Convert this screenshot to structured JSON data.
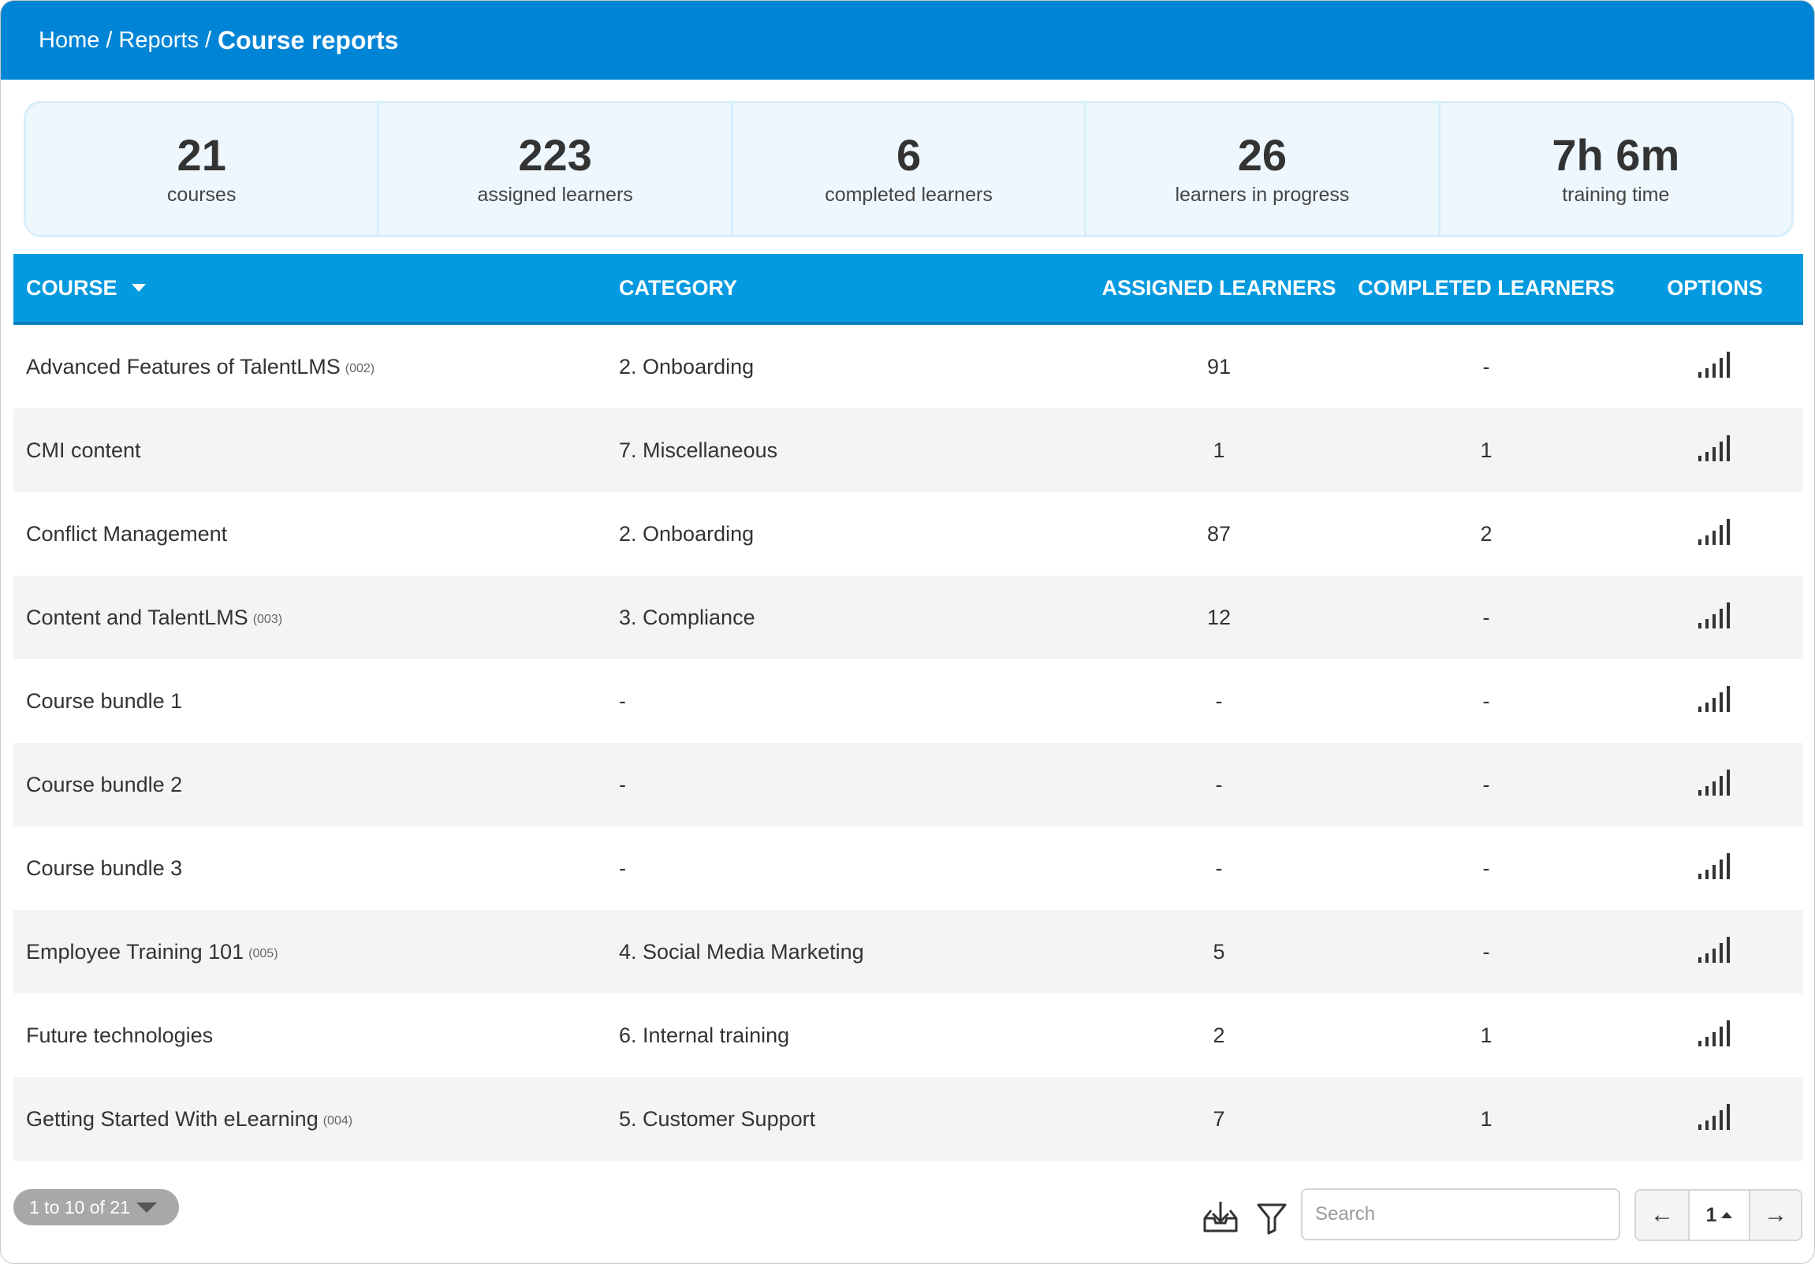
{
  "breadcrumb": {
    "home": "Home",
    "separator": "/",
    "reports": "Reports",
    "current": "Course reports"
  },
  "stats": [
    {
      "value": "21",
      "label": "courses"
    },
    {
      "value": "223",
      "label": "assigned learners"
    },
    {
      "value": "6",
      "label": "completed learners"
    },
    {
      "value": "26",
      "label": "learners in progress"
    },
    {
      "value": "7h 6m",
      "label": "training time"
    }
  ],
  "table": {
    "headers": {
      "course": "COURSE",
      "category": "CATEGORY",
      "assigned": "ASSIGNED LEARNERS",
      "completed": "COMPLETED LEARNERS",
      "options": "OPTIONS"
    },
    "sort": {
      "column": "course",
      "direction": "descending-caret-shown"
    },
    "rows": [
      {
        "course": "Advanced Features of TalentLMS",
        "code": "(002)",
        "category": "2. Onboarding",
        "assigned": "91",
        "completed": "-"
      },
      {
        "course": "CMI content",
        "code": "",
        "category": "7. Miscellaneous",
        "assigned": "1",
        "completed": "1"
      },
      {
        "course": "Conflict Management",
        "code": "",
        "category": "2. Onboarding",
        "assigned": "87",
        "completed": "2"
      },
      {
        "course": "Content and TalentLMS",
        "code": "(003)",
        "category": "3. Compliance",
        "assigned": "12",
        "completed": "-"
      },
      {
        "course": "Course bundle 1",
        "code": "",
        "category": "-",
        "assigned": "-",
        "completed": "-"
      },
      {
        "course": "Course bundle 2",
        "code": "",
        "category": "-",
        "assigned": "-",
        "completed": "-"
      },
      {
        "course": "Course bundle 3",
        "code": "",
        "category": "-",
        "assigned": "-",
        "completed": "-"
      },
      {
        "course": "Employee Training 101",
        "code": "(005)",
        "category": "4. Social Media Marketing",
        "assigned": "5",
        "completed": "-"
      },
      {
        "course": "Future technologies",
        "code": "",
        "category": "6. Internal training",
        "assigned": "2",
        "completed": "1"
      },
      {
        "course": "Getting Started With eLearning",
        "code": "(004)",
        "category": "5. Customer Support",
        "assigned": "7",
        "completed": "1"
      }
    ],
    "options_icon": "reports-bars-icon"
  },
  "footer": {
    "range_label": "1 to 10 of 21",
    "export_icon": "download-icon",
    "filter_icon": "filter-icon",
    "search_placeholder": "Search",
    "search_value": "",
    "prev": "←",
    "current_page": "1",
    "next": "→"
  },
  "colors": {
    "header_bg": "#0085d6",
    "table_header_bg": "#039ae0",
    "stats_bg": "#eef7fe",
    "row_alt_bg": "#f4f4f4"
  }
}
